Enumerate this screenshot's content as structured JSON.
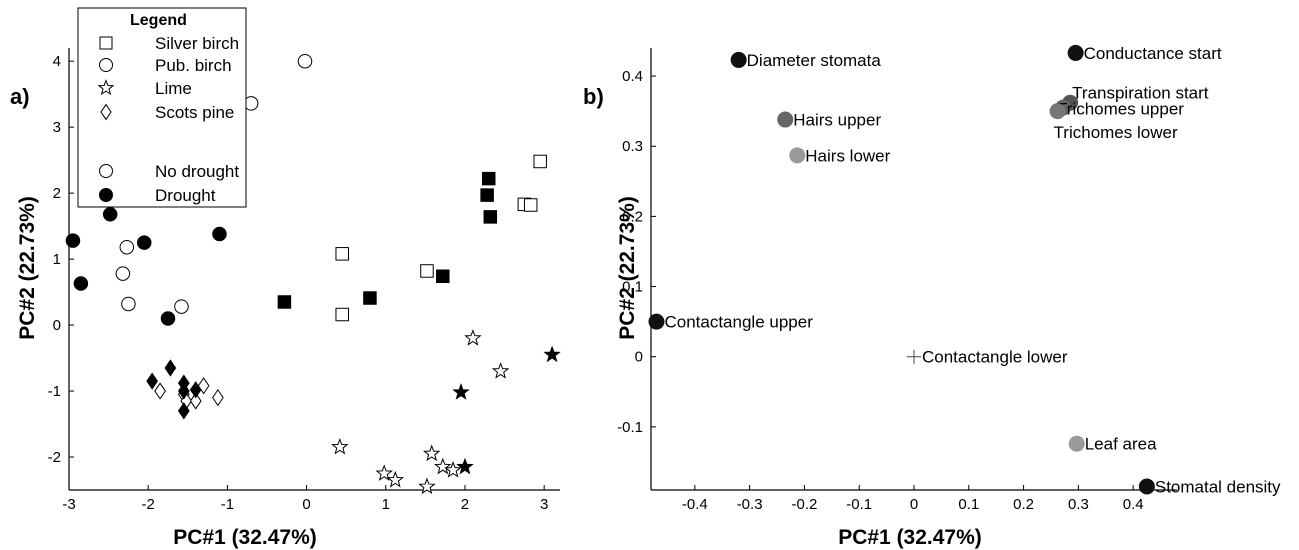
{
  "chart_data": [
    {
      "type": "scatter",
      "panel_label": "a)",
      "xlabel": "PC#1 (32.47%)",
      "ylabel": "PC#2 (22.73%)",
      "xlim": [
        -3,
        3.2
      ],
      "ylim": [
        -2.5,
        4.2
      ],
      "xticks": [
        -3,
        -2,
        -1,
        0,
        1,
        2,
        3
      ],
      "yticks": [
        -2,
        -1,
        0,
        1,
        2,
        3,
        4
      ],
      "grid": false,
      "legend": {
        "title": "Legend",
        "placement": "top-left",
        "entries": [
          {
            "label": "Silver birch",
            "marker": "square",
            "fill": "open"
          },
          {
            "label": "Pub. birch",
            "marker": "circle",
            "fill": "open"
          },
          {
            "label": "Lime",
            "marker": "star",
            "fill": "open"
          },
          {
            "label": "Scots pine",
            "marker": "diamond",
            "fill": "open"
          },
          {
            "label": "",
            "marker": "none",
            "fill": "open"
          },
          {
            "label": "No drought",
            "marker": "circle",
            "fill": "open"
          },
          {
            "label": "Drought",
            "marker": "circle",
            "fill": "filled"
          }
        ]
      },
      "series": [
        {
          "species": "Silver birch",
          "condition": "No drought",
          "marker": "square",
          "fill": "open",
          "points": [
            [
              2.95,
              2.48
            ],
            [
              2.75,
              1.83
            ],
            [
              2.83,
              1.82
            ],
            [
              1.52,
              0.82
            ],
            [
              0.45,
              1.08
            ],
            [
              0.45,
              0.16
            ]
          ]
        },
        {
          "species": "Silver birch",
          "condition": "Drought",
          "marker": "square",
          "fill": "filled",
          "points": [
            [
              2.3,
              2.22
            ],
            [
              2.28,
              1.97
            ],
            [
              2.32,
              1.64
            ],
            [
              1.72,
              0.74
            ],
            [
              0.8,
              0.41
            ],
            [
              -0.28,
              0.35
            ]
          ]
        },
        {
          "species": "Pub. birch",
          "condition": "No drought",
          "marker": "circle",
          "fill": "open",
          "points": [
            [
              -0.02,
              4.0
            ],
            [
              -0.7,
              3.36
            ],
            [
              -2.27,
              1.18
            ],
            [
              -2.32,
              0.78
            ],
            [
              -2.25,
              0.32
            ],
            [
              -1.58,
              0.28
            ]
          ]
        },
        {
          "species": "Pub. birch",
          "condition": "Drought",
          "marker": "circle",
          "fill": "filled",
          "points": [
            [
              -2.95,
              1.28
            ],
            [
              -2.85,
              0.63
            ],
            [
              -2.48,
              1.68
            ],
            [
              -2.05,
              1.25
            ],
            [
              -1.1,
              1.38
            ],
            [
              -1.75,
              0.1
            ]
          ]
        },
        {
          "species": "Lime",
          "condition": "No drought",
          "marker": "star",
          "fill": "open",
          "points": [
            [
              2.1,
              -0.2
            ],
            [
              2.45,
              -0.7
            ],
            [
              0.42,
              -1.85
            ],
            [
              1.58,
              -1.95
            ],
            [
              1.72,
              -2.15
            ],
            [
              1.85,
              -2.2
            ],
            [
              0.98,
              -2.25
            ],
            [
              1.12,
              -2.35
            ],
            [
              1.52,
              -2.45
            ]
          ]
        },
        {
          "species": "Lime",
          "condition": "Drought",
          "marker": "star",
          "fill": "filled",
          "points": [
            [
              3.1,
              -0.45
            ],
            [
              1.95,
              -1.02
            ],
            [
              2.0,
              -2.15
            ]
          ]
        },
        {
          "species": "Scots pine",
          "condition": "No drought",
          "marker": "diamond",
          "fill": "open",
          "points": [
            [
              -1.85,
              -1.0
            ],
            [
              -1.55,
              -1.05
            ],
            [
              -1.52,
              -1.15
            ],
            [
              -1.4,
              -1.15
            ],
            [
              -1.3,
              -0.92
            ],
            [
              -1.12,
              -1.1
            ]
          ]
        },
        {
          "species": "Scots pine",
          "condition": "Drought",
          "marker": "diamond",
          "fill": "filled",
          "points": [
            [
              -1.95,
              -0.85
            ],
            [
              -1.72,
              -0.65
            ],
            [
              -1.55,
              -0.88
            ],
            [
              -1.55,
              -1.0
            ],
            [
              -1.4,
              -0.98
            ],
            [
              -1.55,
              -1.3
            ]
          ]
        }
      ]
    },
    {
      "type": "scatter",
      "panel_label": "b)",
      "xlabel": "PC#1 (32.47%)",
      "ylabel": "PC#2 (22.73%)",
      "xlim": [
        -0.48,
        0.48
      ],
      "ylim": [
        -0.19,
        0.44
      ],
      "xticks": [
        -0.4,
        -0.3,
        -0.2,
        -0.1,
        0,
        0.1,
        0.2,
        0.3,
        0.4
      ],
      "yticks": [
        -0.1,
        0,
        0.1,
        0.2,
        0.3,
        0.4
      ],
      "xtick_labels": [
        "-0.4",
        "-0.3",
        "-0.2",
        "-0.1",
        "0",
        "0.1",
        "0.2",
        "0.3",
        "0.4"
      ],
      "ytick_labels": [
        "-0.1",
        "0",
        "0.1",
        "0.2",
        "0.3",
        "0.4"
      ],
      "grid": false,
      "points": [
        {
          "label": "Diameter stomata",
          "x": -0.32,
          "y": 0.423,
          "marker": "circle",
          "color": "#111111"
        },
        {
          "label": "Conductance start",
          "x": 0.295,
          "y": 0.433,
          "marker": "circle",
          "color": "#111111"
        },
        {
          "label": "Transpiration start",
          "x": 0.285,
          "y": 0.362,
          "marker": "circle",
          "color": "#555555"
        },
        {
          "label": "Trichomes upper",
          "x": 0.272,
          "y": 0.355,
          "marker": "circle",
          "color": "#666666"
        },
        {
          "label": "Trichomes lower",
          "x": 0.262,
          "y": 0.35,
          "marker": "circle",
          "color": "#777777"
        },
        {
          "label": "Hairs upper",
          "x": -0.235,
          "y": 0.338,
          "marker": "circle",
          "color": "#666666"
        },
        {
          "label": "Hairs lower",
          "x": -0.213,
          "y": 0.287,
          "marker": "circle",
          "color": "#999999"
        },
        {
          "label": "Contactangle upper",
          "x": -0.47,
          "y": 0.05,
          "marker": "circle",
          "color": "#111111"
        },
        {
          "label": "Contactangle lower",
          "x": 0.0,
          "y": 0.0,
          "marker": "plus",
          "color": "#444444"
        },
        {
          "label": "Leaf area",
          "x": 0.297,
          "y": -0.124,
          "marker": "circle",
          "color": "#999999"
        },
        {
          "label": "Stomatal density",
          "x": 0.425,
          "y": -0.185,
          "marker": "circle",
          "color": "#111111"
        }
      ]
    }
  ]
}
